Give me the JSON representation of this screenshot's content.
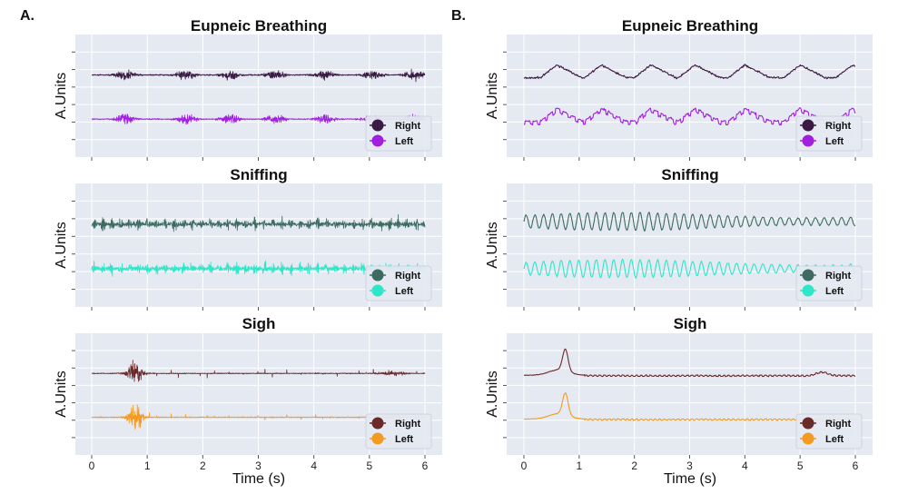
{
  "figure": {
    "xlabel": "Time (s)",
    "ylabel": "A.Units",
    "xlim": [
      0,
      6
    ],
    "xticks": [
      0,
      1,
      2,
      3,
      4,
      5,
      6
    ],
    "columns": [
      {
        "label": "A.",
        "signal": "raw"
      },
      {
        "label": "B.",
        "signal": "smoothed"
      }
    ]
  },
  "chart_data": [
    {
      "type": "line",
      "column": "A.",
      "title": "Eupneic Breathing",
      "xlabel": "",
      "ylabel": "A.Units",
      "xlim": [
        0,
        6
      ],
      "series": [
        {
          "name": "Right",
          "color": "#3b1a44",
          "burst_times": [
            0.6,
            1.7,
            2.5,
            3.3,
            4.2,
            5.05,
            5.8
          ],
          "offset": 1
        },
        {
          "name": "Left",
          "color": "#a21fe0",
          "burst_times": [
            0.6,
            1.7,
            2.5,
            3.3,
            4.2,
            5.05,
            5.8
          ],
          "offset": 0
        }
      ],
      "legend": "bottom-right"
    },
    {
      "type": "line",
      "column": "A.",
      "title": "Sniffing",
      "xlabel": "",
      "ylabel": "A.Units",
      "xlim": [
        0,
        6
      ],
      "series": [
        {
          "name": "Right",
          "color": "#3d6b61",
          "burst_rate_hz": 6.2,
          "offset": 1
        },
        {
          "name": "Left",
          "color": "#2ee6c8",
          "burst_rate_hz": 6.2,
          "offset": 0
        }
      ],
      "legend": "bottom-right"
    },
    {
      "type": "line",
      "column": "A.",
      "title": "Sigh",
      "xlabel": "Time (s)",
      "ylabel": "A.Units",
      "xlim": [
        0,
        6
      ],
      "series": [
        {
          "name": "Right",
          "color": "#6b2a2a",
          "burst_times": [
            0.78,
            5.4
          ],
          "offset": 1
        },
        {
          "name": "Left",
          "color": "#f39a21",
          "burst_times": [
            0.78,
            5.4
          ],
          "offset": 0
        }
      ],
      "legend": "bottom-right"
    },
    {
      "type": "line",
      "column": "B.",
      "title": "Eupneic Breathing",
      "xlabel": "",
      "ylabel": "A.Units",
      "xlim": [
        0,
        6
      ],
      "series": [
        {
          "name": "Right",
          "color": "#3b1a44",
          "peak_times": [
            0.6,
            1.4,
            2.3,
            3.1,
            4.0,
            5.0,
            5.95
          ],
          "offset": 1
        },
        {
          "name": "Left",
          "color": "#a21fe0",
          "peak_times": [
            0.6,
            1.4,
            2.3,
            3.1,
            4.0,
            5.0,
            5.95
          ],
          "offset": 0
        }
      ],
      "legend": "bottom-right"
    },
    {
      "type": "line",
      "column": "B.",
      "title": "Sniffing",
      "xlabel": "",
      "ylabel": "A.Units",
      "xlim": [
        0,
        6
      ],
      "series": [
        {
          "name": "Right",
          "color": "#3d6b61",
          "oscillation_hz": 6.3,
          "offset": 1
        },
        {
          "name": "Left",
          "color": "#2ee6c8",
          "oscillation_hz": 6.3,
          "offset": 0
        }
      ],
      "legend": "bottom-right"
    },
    {
      "type": "line",
      "column": "B.",
      "title": "Sigh",
      "xlabel": "Time (s)",
      "ylabel": "A.Units",
      "xlim": [
        0,
        6
      ],
      "series": [
        {
          "name": "Right",
          "color": "#6b2a2a",
          "peak_time": 0.75,
          "offset": 1
        },
        {
          "name": "Left",
          "color": "#f39a21",
          "peak_time": 0.75,
          "offset": 0
        }
      ],
      "legend": "bottom-right"
    }
  ]
}
